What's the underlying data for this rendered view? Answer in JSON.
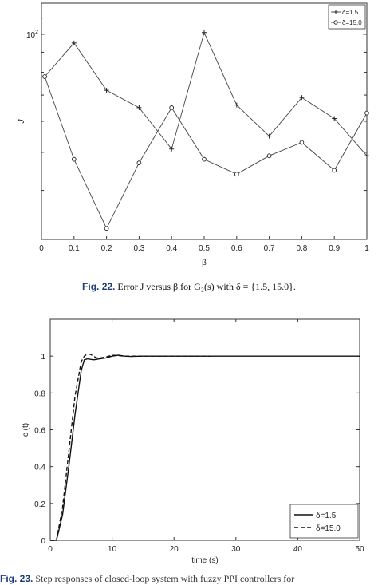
{
  "figure22": {
    "caption_label": "Fig. 22.",
    "caption_text": "Error J versus β for G₂(s) with δ = {1.5, 15.0}."
  },
  "figure23": {
    "caption_label": "Fig. 23.",
    "caption_text": "Step responses of closed-loop system with fuzzy PPI controllers for"
  },
  "chart_data": [
    {
      "type": "line",
      "title": "",
      "xlabel": "β",
      "ylabel": "J",
      "xlim": [
        0,
        1
      ],
      "yscale": "log",
      "ylim": [
        0.3,
        1.2
      ],
      "y_tick_label": "10²",
      "x_ticks": [
        "0",
        "0.1",
        "0.2",
        "0.3",
        "0.4",
        "0.5",
        "0.6",
        "0.7",
        "0.8",
        "0.9",
        "1"
      ],
      "legend_position": "top-right",
      "series": [
        {
          "name": "δ=1.5",
          "marker": "plus",
          "x": [
            0.01,
            0.1,
            0.2,
            0.3,
            0.4,
            0.5,
            0.6,
            0.7,
            0.8,
            0.9,
            1.0
          ],
          "y": [
            0.78,
            0.95,
            0.72,
            0.65,
            0.51,
            1.01,
            0.66,
            0.55,
            0.69,
            0.61,
            0.49
          ]
        },
        {
          "name": "δ=15.0",
          "marker": "circle",
          "x": [
            0.01,
            0.1,
            0.2,
            0.3,
            0.4,
            0.5,
            0.6,
            0.7,
            0.8,
            0.9,
            1.0
          ],
          "y": [
            0.78,
            0.48,
            0.32,
            0.47,
            0.65,
            0.48,
            0.44,
            0.49,
            0.53,
            0.45,
            0.63
          ]
        }
      ]
    },
    {
      "type": "line",
      "title": "",
      "xlabel": "time (s)",
      "ylabel": "c (t)",
      "xlim": [
        0,
        50
      ],
      "ylim": [
        0,
        1.2
      ],
      "x_ticks": [
        "0",
        "10",
        "20",
        "30",
        "40",
        "50"
      ],
      "y_ticks": [
        "0",
        "0.2",
        "0.4",
        "0.6",
        "0.8",
        "1"
      ],
      "legend_position": "bottom-right",
      "series": [
        {
          "name": "δ=1.5",
          "style": "solid",
          "x": [
            0,
            1,
            2,
            3,
            4,
            5,
            5.5,
            6,
            7,
            8,
            9,
            10,
            11,
            12,
            13,
            15,
            18,
            22,
            30,
            50
          ],
          "y": [
            0,
            0,
            0.14,
            0.4,
            0.68,
            0.92,
            0.98,
            0.985,
            0.98,
            0.985,
            0.99,
            1.0,
            1.005,
            1.0,
            0.998,
            1.0,
            1.0,
            1.0,
            1.0,
            1.0
          ]
        },
        {
          "name": "δ=15.0",
          "style": "dashed",
          "x": [
            0,
            1,
            2,
            3,
            4,
            5,
            5.5,
            6,
            6.5,
            7,
            7.5,
            8,
            9,
            10,
            11,
            12,
            14,
            17,
            20,
            26
          ],
          "y": [
            0,
            0,
            0.18,
            0.48,
            0.78,
            0.97,
            1.0,
            1.012,
            1.01,
            1.0,
            0.99,
            0.99,
            0.995,
            1.005,
            1.003,
            1.0,
            1.0,
            1.0,
            1.0,
            1.0
          ]
        }
      ]
    }
  ]
}
